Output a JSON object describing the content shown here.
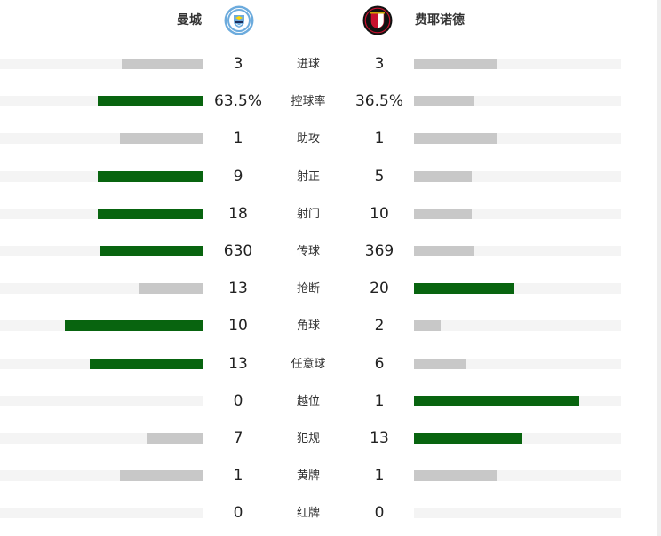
{
  "home": {
    "name": "曼城",
    "logo": "manchester-city-crest"
  },
  "away": {
    "name": "费耶诺德",
    "logo": "feyenoord-crest"
  },
  "colors": {
    "lead": "#08640f",
    "trail": "#c8c8c8",
    "track": "#f4f4f4"
  },
  "stats": [
    {
      "label": "进球",
      "home": "3",
      "away": "3",
      "home_fill": 0.4,
      "away_fill": 0.4,
      "home_lead": false,
      "away_lead": false
    },
    {
      "label": "控球率",
      "home": "63.5%",
      "away": "36.5%",
      "home_fill": 0.52,
      "away_fill": 0.29,
      "home_lead": true,
      "away_lead": false
    },
    {
      "label": "助攻",
      "home": "1",
      "away": "1",
      "home_fill": 0.41,
      "away_fill": 0.4,
      "home_lead": false,
      "away_lead": false
    },
    {
      "label": "射正",
      "home": "9",
      "away": "5",
      "home_fill": 0.52,
      "away_fill": 0.28,
      "home_lead": true,
      "away_lead": false
    },
    {
      "label": "射门",
      "home": "18",
      "away": "10",
      "home_fill": 0.52,
      "away_fill": 0.28,
      "home_lead": true,
      "away_lead": false
    },
    {
      "label": "传球",
      "home": "630",
      "away": "369",
      "home_fill": 0.51,
      "away_fill": 0.29,
      "home_lead": true,
      "away_lead": false
    },
    {
      "label": "抢断",
      "home": "13",
      "away": "20",
      "home_fill": 0.32,
      "away_fill": 0.48,
      "home_lead": false,
      "away_lead": true
    },
    {
      "label": "角球",
      "home": "10",
      "away": "2",
      "home_fill": 0.68,
      "away_fill": 0.13,
      "home_lead": true,
      "away_lead": false
    },
    {
      "label": "任意球",
      "home": "13",
      "away": "6",
      "home_fill": 0.56,
      "away_fill": 0.25,
      "home_lead": true,
      "away_lead": false
    },
    {
      "label": "越位",
      "home": "0",
      "away": "1",
      "home_fill": 0.0,
      "away_fill": 0.8,
      "home_lead": false,
      "away_lead": true
    },
    {
      "label": "犯规",
      "home": "7",
      "away": "13",
      "home_fill": 0.28,
      "away_fill": 0.52,
      "home_lead": false,
      "away_lead": true
    },
    {
      "label": "黄牌",
      "home": "1",
      "away": "1",
      "home_fill": 0.41,
      "away_fill": 0.4,
      "home_lead": false,
      "away_lead": false
    },
    {
      "label": "红牌",
      "home": "0",
      "away": "0",
      "home_fill": 0.0,
      "away_fill": 0.0,
      "home_lead": false,
      "away_lead": false
    }
  ]
}
